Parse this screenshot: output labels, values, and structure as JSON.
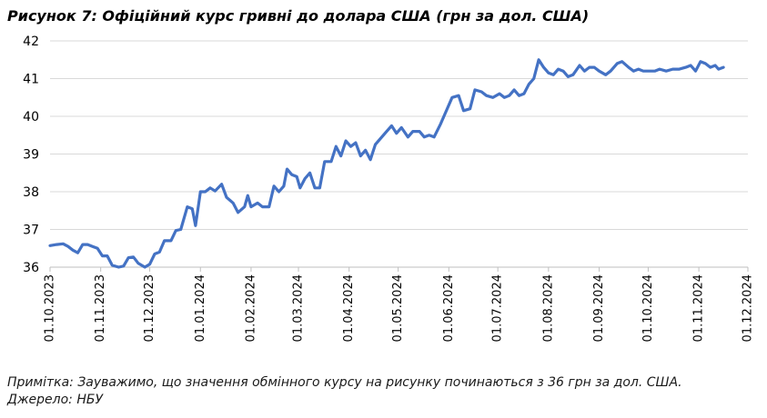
{
  "title": "Рисунок 7: Офіційний курс гривні до долара США (грн за дол. США)",
  "note": "Примітка: Зауважимо, що значення обмінного курсу на рисунку починаються з 36 грн за дол. США.",
  "source": "Джерело: НБУ",
  "chart_data": {
    "type": "line",
    "title": "Рисунок 7: Офіційний курс гривні до долара США (грн за дол. США)",
    "xlabel": "",
    "ylabel": "",
    "ylim": [
      36,
      42
    ],
    "yticks": [
      "36",
      "37",
      "38",
      "39",
      "40",
      "41",
      "42"
    ],
    "xticks": [
      "01.10.2023",
      "01.11.2023",
      "01.12.2023",
      "01.01.2024",
      "01.02.2024",
      "01.03.2024",
      "01.04.2024",
      "01.05.2024",
      "01.06.2024",
      "01.07.2024",
      "01.08.2024",
      "01.09.2024",
      "01.10.2024",
      "01.11.2024",
      "01.12.2024"
    ],
    "xlim": [
      "2023-10-01",
      "2024-12-01"
    ],
    "grid": true,
    "line_color": "#4472C4",
    "series": [
      {
        "name": "",
        "points": [
          [
            "2023-10-01",
            36.57
          ],
          [
            "2023-10-05",
            36.6
          ],
          [
            "2023-10-09",
            36.62
          ],
          [
            "2023-10-12",
            36.55
          ],
          [
            "2023-10-15",
            36.45
          ],
          [
            "2023-10-18",
            36.38
          ],
          [
            "2023-10-21",
            36.6
          ],
          [
            "2023-10-24",
            36.6
          ],
          [
            "2023-10-27",
            36.55
          ],
          [
            "2023-10-30",
            36.5
          ],
          [
            "2023-11-02",
            36.3
          ],
          [
            "2023-11-05",
            36.3
          ],
          [
            "2023-11-08",
            36.05
          ],
          [
            "2023-11-12",
            36.0
          ],
          [
            "2023-11-15",
            36.03
          ],
          [
            "2023-11-18",
            36.25
          ],
          [
            "2023-11-21",
            36.27
          ],
          [
            "2023-11-24",
            36.1
          ],
          [
            "2023-11-28",
            36.0
          ],
          [
            "2023-12-01",
            36.08
          ],
          [
            "2023-12-04",
            36.35
          ],
          [
            "2023-12-07",
            36.4
          ],
          [
            "2023-12-10",
            36.7
          ],
          [
            "2023-12-14",
            36.7
          ],
          [
            "2023-12-17",
            36.97
          ],
          [
            "2023-12-20",
            37.0
          ],
          [
            "2023-12-24",
            37.6
          ],
          [
            "2023-12-27",
            37.55
          ],
          [
            "2023-12-29",
            37.1
          ],
          [
            "2024-01-01",
            38.0
          ],
          [
            "2024-01-04",
            38.0
          ],
          [
            "2024-01-07",
            38.1
          ],
          [
            "2024-01-10",
            38.02
          ],
          [
            "2024-01-14",
            38.2
          ],
          [
            "2024-01-17",
            37.85
          ],
          [
            "2024-01-21",
            37.7
          ],
          [
            "2024-01-24",
            37.45
          ],
          [
            "2024-01-28",
            37.6
          ],
          [
            "2024-01-30",
            37.9
          ],
          [
            "2024-02-01",
            37.6
          ],
          [
            "2024-02-05",
            37.7
          ],
          [
            "2024-02-08",
            37.6
          ],
          [
            "2024-02-12",
            37.6
          ],
          [
            "2024-02-15",
            38.15
          ],
          [
            "2024-02-18",
            38.0
          ],
          [
            "2024-02-21",
            38.15
          ],
          [
            "2024-02-23",
            38.6
          ],
          [
            "2024-02-26",
            38.45
          ],
          [
            "2024-02-29",
            38.4
          ],
          [
            "2024-03-02",
            38.1
          ],
          [
            "2024-03-05",
            38.35
          ],
          [
            "2024-03-08",
            38.5
          ],
          [
            "2024-03-11",
            38.1
          ],
          [
            "2024-03-14",
            38.1
          ],
          [
            "2024-03-17",
            38.8
          ],
          [
            "2024-03-21",
            38.8
          ],
          [
            "2024-03-24",
            39.2
          ],
          [
            "2024-03-27",
            38.95
          ],
          [
            "2024-03-30",
            39.35
          ],
          [
            "2024-04-02",
            39.2
          ],
          [
            "2024-04-05",
            39.3
          ],
          [
            "2024-04-08",
            38.95
          ],
          [
            "2024-04-11",
            39.1
          ],
          [
            "2024-04-14",
            38.85
          ],
          [
            "2024-04-17",
            39.25
          ],
          [
            "2024-04-21",
            39.45
          ],
          [
            "2024-04-24",
            39.6
          ],
          [
            "2024-04-27",
            39.75
          ],
          [
            "2024-04-30",
            39.55
          ],
          [
            "2024-05-03",
            39.7
          ],
          [
            "2024-05-07",
            39.45
          ],
          [
            "2024-05-10",
            39.6
          ],
          [
            "2024-05-14",
            39.6
          ],
          [
            "2024-05-17",
            39.45
          ],
          [
            "2024-05-20",
            39.5
          ],
          [
            "2024-05-23",
            39.45
          ],
          [
            "2024-05-27",
            39.8
          ],
          [
            "2024-05-31",
            40.2
          ],
          [
            "2024-06-03",
            40.5
          ],
          [
            "2024-06-07",
            40.55
          ],
          [
            "2024-06-10",
            40.15
          ],
          [
            "2024-06-14",
            40.2
          ],
          [
            "2024-06-17",
            40.7
          ],
          [
            "2024-06-21",
            40.65
          ],
          [
            "2024-06-24",
            40.55
          ],
          [
            "2024-06-28",
            40.5
          ],
          [
            "2024-07-02",
            40.6
          ],
          [
            "2024-07-05",
            40.5
          ],
          [
            "2024-07-08",
            40.55
          ],
          [
            "2024-07-11",
            40.7
          ],
          [
            "2024-07-14",
            40.55
          ],
          [
            "2024-07-17",
            40.6
          ],
          [
            "2024-07-20",
            40.85
          ],
          [
            "2024-07-23",
            41.0
          ],
          [
            "2024-07-26",
            41.5
          ],
          [
            "2024-07-29",
            41.3
          ],
          [
            "2024-08-01",
            41.15
          ],
          [
            "2024-08-04",
            41.1
          ],
          [
            "2024-08-07",
            41.25
          ],
          [
            "2024-08-10",
            41.2
          ],
          [
            "2024-08-13",
            41.05
          ],
          [
            "2024-08-16",
            41.1
          ],
          [
            "2024-08-20",
            41.35
          ],
          [
            "2024-08-23",
            41.2
          ],
          [
            "2024-08-26",
            41.3
          ],
          [
            "2024-08-29",
            41.3
          ],
          [
            "2024-09-01",
            41.2
          ],
          [
            "2024-09-05",
            41.1
          ],
          [
            "2024-09-08",
            41.2
          ],
          [
            "2024-09-12",
            41.4
          ],
          [
            "2024-09-15",
            41.45
          ],
          [
            "2024-09-19",
            41.3
          ],
          [
            "2024-09-22",
            41.2
          ],
          [
            "2024-09-25",
            41.25
          ],
          [
            "2024-09-28",
            41.2
          ],
          [
            "2024-10-01",
            41.2
          ],
          [
            "2024-10-05",
            41.2
          ],
          [
            "2024-10-08",
            41.25
          ],
          [
            "2024-10-12",
            41.2
          ],
          [
            "2024-10-16",
            41.25
          ],
          [
            "2024-10-20",
            41.25
          ],
          [
            "2024-10-24",
            41.3
          ],
          [
            "2024-10-27",
            41.35
          ],
          [
            "2024-10-30",
            41.2
          ],
          [
            "2024-11-02",
            41.45
          ],
          [
            "2024-11-05",
            41.4
          ],
          [
            "2024-11-08",
            41.3
          ],
          [
            "2024-11-11",
            41.35
          ],
          [
            "2024-11-13",
            41.25
          ],
          [
            "2024-11-16",
            41.3
          ]
        ]
      }
    ]
  }
}
